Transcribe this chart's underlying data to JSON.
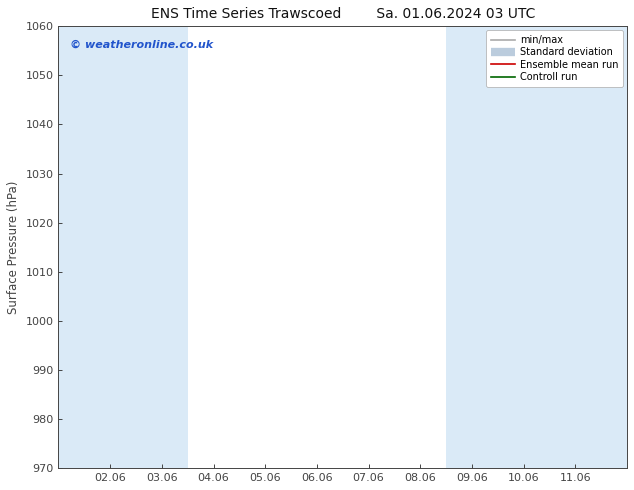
{
  "title_left": "ENS Time Series Trawscoed",
  "title_right": "Sa. 01.06.2024 03 UTC",
  "ylabel": "Surface Pressure (hPa)",
  "ylim": [
    970,
    1060
  ],
  "ytick_step": 10,
  "background_color": "#ffffff",
  "plot_bg_color": "#ffffff",
  "x_labels": [
    "02.06",
    "03.06",
    "04.06",
    "05.06",
    "06.06",
    "07.06",
    "08.06",
    "09.06",
    "10.06",
    "11.06"
  ],
  "x_positions": [
    1,
    2,
    3,
    4,
    5,
    6,
    7,
    8,
    9,
    10
  ],
  "shaded_bands": [
    [
      0.0,
      1.5
    ],
    [
      1.5,
      2.5
    ],
    [
      7.5,
      8.5
    ],
    [
      8.5,
      9.5
    ],
    [
      9.5,
      11.0
    ]
  ],
  "shaded_color": "#daeaf7",
  "watermark": "© weatheronline.co.uk",
  "watermark_color": "#2255cc",
  "legend_items": [
    {
      "label": "min/max",
      "color": "#aaaaaa",
      "lw": 1.2
    },
    {
      "label": "Standard deviation",
      "color": "#bbccdd",
      "lw": 6
    },
    {
      "label": "Ensemble mean run",
      "color": "#cc0000",
      "lw": 1.2
    },
    {
      "label": "Controll run",
      "color": "#006600",
      "lw": 1.2
    }
  ],
  "tick_color": "#444444",
  "spine_color": "#444444",
  "title_fontsize": 10,
  "tick_fontsize": 8,
  "ylabel_fontsize": 8.5,
  "xlim": [
    0.0,
    11.0
  ]
}
